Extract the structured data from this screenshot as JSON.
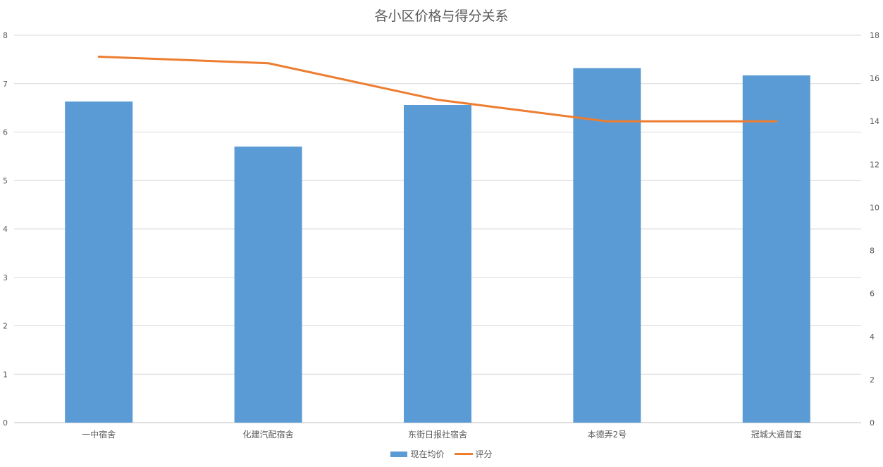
{
  "chart_data": {
    "type": "bar+line",
    "title": "各小区价格与得分关系",
    "categories": [
      "一中宿舍",
      "化建汽配宿舍",
      "东街日报社宿舍",
      "本德弄2号",
      "冠城大通首玺"
    ],
    "series": [
      {
        "name": "现在均价",
        "type": "bar",
        "axis": "left",
        "color": "#5B9BD5",
        "values": [
          6.63,
          5.7,
          6.56,
          7.32,
          7.17
        ]
      },
      {
        "name": "评分",
        "type": "line",
        "axis": "right",
        "color": "#ED7D31",
        "values": [
          17,
          16.7,
          15,
          14,
          14
        ]
      }
    ],
    "y_left": {
      "range": [
        0,
        8
      ],
      "ticks": [
        "0",
        "1",
        "2",
        "3",
        "4",
        "5",
        "6",
        "7",
        "8"
      ]
    },
    "y_right": {
      "range": [
        0,
        18
      ],
      "ticks": [
        "0",
        "2",
        "4",
        "6",
        "8",
        "10",
        "12",
        "14",
        "16",
        "18"
      ]
    },
    "grid": true,
    "legend": "bottom"
  }
}
